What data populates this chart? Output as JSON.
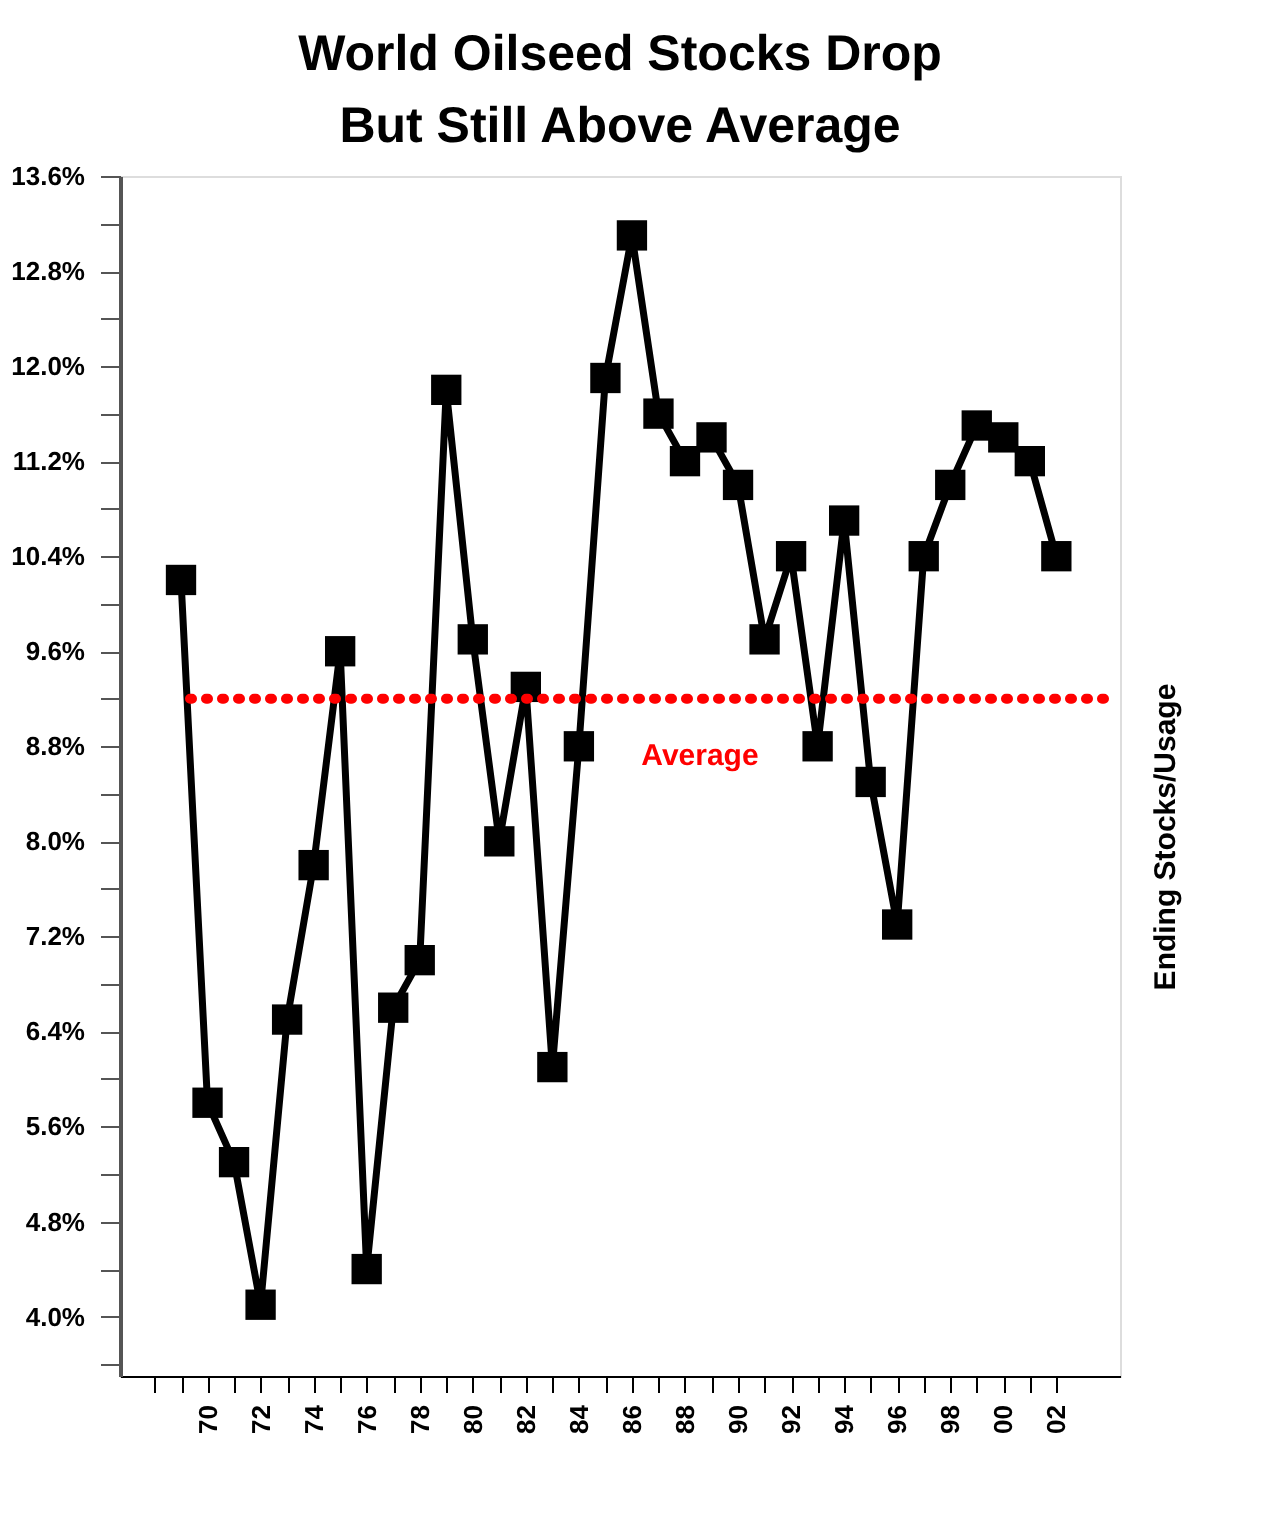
{
  "chart_data": {
    "type": "line",
    "title": "World Oilseed Stocks Drop\nBut Still Above Average",
    "ylabel": "Ending Stocks/Usage",
    "x": [
      1969,
      1970,
      1971,
      1972,
      1973,
      1974,
      1975,
      1976,
      1977,
      1978,
      1979,
      1980,
      1981,
      1982,
      1983,
      1984,
      1985,
      1986,
      1987,
      1988,
      1989,
      1990,
      1991,
      1992,
      1993,
      1994,
      1995,
      1996,
      1997,
      1998,
      1999,
      2000,
      2001,
      2002
    ],
    "series": [
      {
        "color": "#000000",
        "values": [
          10.2,
          5.8,
          5.3,
          4.1,
          6.5,
          7.8,
          9.6,
          4.4,
          6.6,
          7.0,
          11.8,
          9.7,
          8.0,
          9.3,
          6.1,
          8.8,
          11.9,
          13.1,
          11.6,
          11.2,
          11.4,
          11.0,
          9.7,
          10.4,
          8.8,
          10.7,
          8.5,
          7.3,
          10.4,
          11.0,
          11.5,
          11.4,
          11.2,
          10.4
        ]
      }
    ],
    "xlim": [
      1966.7,
      2004.4
    ],
    "xticks": [
      {
        "value": 1968,
        "label": null
      },
      {
        "value": 1969,
        "label": null
      },
      {
        "value": 1970,
        "label": "70"
      },
      {
        "value": 1971,
        "label": null
      },
      {
        "value": 1972,
        "label": "72"
      },
      {
        "value": 1973,
        "label": null
      },
      {
        "value": 1974,
        "label": "74"
      },
      {
        "value": 1975,
        "label": null
      },
      {
        "value": 1976,
        "label": "76"
      },
      {
        "value": 1977,
        "label": null
      },
      {
        "value": 1978,
        "label": "78"
      },
      {
        "value": 1979,
        "label": null
      },
      {
        "value": 1980,
        "label": "80"
      },
      {
        "value": 1981,
        "label": null
      },
      {
        "value": 1982,
        "label": "82"
      },
      {
        "value": 1983,
        "label": null
      },
      {
        "value": 1984,
        "label": "84"
      },
      {
        "value": 1985,
        "label": null
      },
      {
        "value": 1986,
        "label": "86"
      },
      {
        "value": 1987,
        "label": null
      },
      {
        "value": 1988,
        "label": "88"
      },
      {
        "value": 1989,
        "label": null
      },
      {
        "value": 1990,
        "label": "90"
      },
      {
        "value": 1991,
        "label": null
      },
      {
        "value": 1992,
        "label": "92"
      },
      {
        "value": 1993,
        "label": null
      },
      {
        "value": 1994,
        "label": "94"
      },
      {
        "value": 1995,
        "label": null
      },
      {
        "value": 1996,
        "label": "96"
      },
      {
        "value": 1997,
        "label": null
      },
      {
        "value": 1998,
        "label": "98"
      },
      {
        "value": 1999,
        "label": null
      },
      {
        "value": 2000,
        "label": "00"
      },
      {
        "value": 2001,
        "label": null
      },
      {
        "value": 2002,
        "label": "02"
      }
    ],
    "ylim": [
      3.5,
      13.6
    ],
    "yticks": [
      {
        "value": 3.6,
        "label": null
      },
      {
        "value": 4.0,
        "label": "4.0%"
      },
      {
        "value": 4.4,
        "label": null
      },
      {
        "value": 4.8,
        "label": "4.8%"
      },
      {
        "value": 5.2,
        "label": null
      },
      {
        "value": 5.6,
        "label": "5.6%"
      },
      {
        "value": 6.0,
        "label": null
      },
      {
        "value": 6.4,
        "label": "6.4%"
      },
      {
        "value": 6.8,
        "label": null
      },
      {
        "value": 7.2,
        "label": "7.2%"
      },
      {
        "value": 7.6,
        "label": null
      },
      {
        "value": 8.0,
        "label": "8.0%"
      },
      {
        "value": 8.4,
        "label": null
      },
      {
        "value": 8.8,
        "label": "8.8%"
      },
      {
        "value": 9.2,
        "label": null
      },
      {
        "value": 9.6,
        "label": "9.6%"
      },
      {
        "value": 10.0,
        "label": null
      },
      {
        "value": 10.4,
        "label": "10.4%"
      },
      {
        "value": 10.8,
        "label": null
      },
      {
        "value": 11.2,
        "label": "11.2%"
      },
      {
        "value": 11.6,
        "label": null
      },
      {
        "value": 12.0,
        "label": "12.0%"
      },
      {
        "value": 12.4,
        "label": null
      },
      {
        "value": 12.8,
        "label": "12.8%"
      },
      {
        "value": 13.2,
        "label": null
      },
      {
        "value": 13.6,
        "label": "13.6%"
      }
    ],
    "ref_lines": [
      {
        "axis": "y",
        "value": 9.2,
        "label": "Average",
        "color": "#ff0000",
        "line_style": "dotted"
      }
    ],
    "grid": false,
    "legend": false,
    "marker": "square",
    "line_style": "solid"
  }
}
